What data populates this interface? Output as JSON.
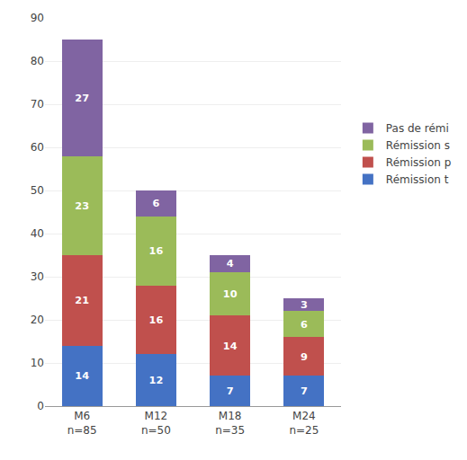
{
  "chart_data": {
    "type": "bar",
    "stacked": true,
    "categories": [
      "M6\nn=85",
      "M12\nn=50",
      "M18\nn=35",
      "M24\nn=25"
    ],
    "series": [
      {
        "name": "Rémission t",
        "color": "#4472C4",
        "values": [
          14,
          12,
          7,
          7
        ]
      },
      {
        "name": "Rémission p",
        "color": "#C0504D",
        "values": [
          21,
          16,
          14,
          9
        ]
      },
      {
        "name": "Rémission s",
        "color": "#9BBB59",
        "values": [
          23,
          16,
          10,
          6
        ]
      },
      {
        "name": "Pas de rémi",
        "color": "#8064A2",
        "values": [
          27,
          6,
          4,
          3
        ]
      }
    ],
    "ylim": [
      0,
      90
    ],
    "yticks": [
      0,
      10,
      20,
      30,
      40,
      50,
      60,
      70,
      80,
      90
    ],
    "grid": true,
    "legend": "right",
    "data_labels": true
  }
}
